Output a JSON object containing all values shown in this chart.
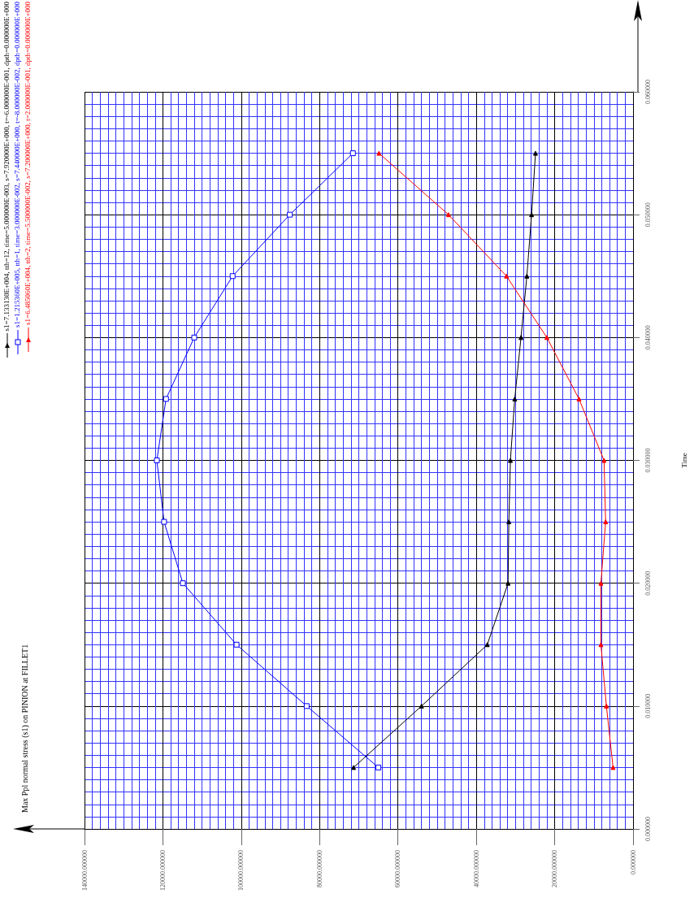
{
  "chart_data": {
    "type": "line",
    "title": "Max Ppl normal stress (s1) on PINION at FILLET1",
    "ylabel": "Time",
    "series": [
      {
        "name": "s1=7.133130E+004, tth=12, time=5.000000E-003, s=7.920000E+000, t=-6.000000E-001, dpth=0.000000E+000",
        "color": "#000000",
        "marker": "triangle",
        "x": [
          71331,
          54000,
          37200,
          31900,
          31700,
          31300,
          30200,
          28600,
          27100,
          25900,
          24900
        ],
        "values": [
          0.005,
          0.01,
          0.015,
          0.02,
          0.025,
          0.03,
          0.035,
          0.04,
          0.045,
          0.05,
          0.055
        ]
      },
      {
        "name": "s1=1.215360E+005, tth=1, time=3.000000E-002, s=7.440000E+000, t=-8.000000E-002, dpth=0.000000E+000",
        "color": "#0000ff",
        "marker": "square",
        "x": [
          65000,
          83300,
          101200,
          114900,
          119700,
          121536,
          119200,
          112000,
          102200,
          87600,
          71500
        ],
        "values": [
          0.005,
          0.01,
          0.015,
          0.02,
          0.025,
          0.03,
          0.035,
          0.04,
          0.045,
          0.05,
          0.055
        ]
      },
      {
        "name": "s1=6.485060E+004, tth=2, time=5.500000E-002, s=7.200000E+000, t=2.000000E-001, dpth=0.000000E+000",
        "color": "#ff0000",
        "marker": "triangle",
        "x": [
          5100,
          6800,
          8200,
          8200,
          7000,
          7400,
          13800,
          22000,
          32300,
          47100,
          64851
        ],
        "values": [
          0.005,
          0.01,
          0.015,
          0.02,
          0.025,
          0.03,
          0.035,
          0.04,
          0.045,
          0.05,
          0.055
        ]
      }
    ],
    "xlim": [
      140000,
      0
    ],
    "xticks": [
      {
        "value": 0,
        "label": "0.000000"
      },
      {
        "value": 2000,
        "label": null
      },
      {
        "value": 4000,
        "label": null
      },
      {
        "value": 6000,
        "label": null
      },
      {
        "value": 8000,
        "label": null
      },
      {
        "value": 10000,
        "label": null
      },
      {
        "value": 12000,
        "label": null
      },
      {
        "value": 14000,
        "label": null
      },
      {
        "value": 16000,
        "label": null
      },
      {
        "value": 18000,
        "label": null
      },
      {
        "value": 20000,
        "label": "20000.000000"
      },
      {
        "value": 22000,
        "label": null
      },
      {
        "value": 24000,
        "label": null
      },
      {
        "value": 26000,
        "label": null
      },
      {
        "value": 28000,
        "label": null
      },
      {
        "value": 30000,
        "label": null
      },
      {
        "value": 32000,
        "label": null
      },
      {
        "value": 34000,
        "label": null
      },
      {
        "value": 36000,
        "label": null
      },
      {
        "value": 38000,
        "label": null
      },
      {
        "value": 40000,
        "label": "40000.000000"
      },
      {
        "value": 42000,
        "label": null
      },
      {
        "value": 44000,
        "label": null
      },
      {
        "value": 46000,
        "label": null
      },
      {
        "value": 48000,
        "label": null
      },
      {
        "value": 50000,
        "label": null
      },
      {
        "value": 52000,
        "label": null
      },
      {
        "value": 54000,
        "label": null
      },
      {
        "value": 56000,
        "label": null
      },
      {
        "value": 58000,
        "label": null
      },
      {
        "value": 60000,
        "label": "60000.000000"
      },
      {
        "value": 62000,
        "label": null
      },
      {
        "value": 64000,
        "label": null
      },
      {
        "value": 66000,
        "label": null
      },
      {
        "value": 68000,
        "label": null
      },
      {
        "value": 70000,
        "label": null
      },
      {
        "value": 72000,
        "label": null
      },
      {
        "value": 74000,
        "label": null
      },
      {
        "value": 76000,
        "label": null
      },
      {
        "value": 78000,
        "label": null
      },
      {
        "value": 80000,
        "label": "80000.000000"
      },
      {
        "value": 82000,
        "label": null
      },
      {
        "value": 84000,
        "label": null
      },
      {
        "value": 86000,
        "label": null
      },
      {
        "value": 88000,
        "label": null
      },
      {
        "value": 90000,
        "label": null
      },
      {
        "value": 92000,
        "label": null
      },
      {
        "value": 94000,
        "label": null
      },
      {
        "value": 96000,
        "label": null
      },
      {
        "value": 98000,
        "label": null
      },
      {
        "value": 100000,
        "label": "100000.000000"
      },
      {
        "value": 102000,
        "label": null
      },
      {
        "value": 104000,
        "label": null
      },
      {
        "value": 106000,
        "label": null
      },
      {
        "value": 108000,
        "label": null
      },
      {
        "value": 110000,
        "label": null
      },
      {
        "value": 112000,
        "label": null
      },
      {
        "value": 114000,
        "label": null
      },
      {
        "value": 116000,
        "label": null
      },
      {
        "value": 118000,
        "label": null
      },
      {
        "value": 120000,
        "label": "120000.000000"
      },
      {
        "value": 122000,
        "label": null
      },
      {
        "value": 124000,
        "label": null
      },
      {
        "value": 126000,
        "label": null
      },
      {
        "value": 128000,
        "label": null
      },
      {
        "value": 130000,
        "label": null
      },
      {
        "value": 132000,
        "label": null
      },
      {
        "value": 134000,
        "label": null
      },
      {
        "value": 136000,
        "label": null
      },
      {
        "value": 138000,
        "label": null
      },
      {
        "value": 140000,
        "label": "140000.000000"
      }
    ],
    "ylim": [
      0,
      0.06
    ],
    "yticks": [
      {
        "value": 0,
        "label": "0.000000"
      },
      {
        "value": 0.001,
        "label": null
      },
      {
        "value": 0.002,
        "label": null
      },
      {
        "value": 0.003,
        "label": null
      },
      {
        "value": 0.004,
        "label": null
      },
      {
        "value": 0.005,
        "label": null
      },
      {
        "value": 0.006,
        "label": null
      },
      {
        "value": 0.007,
        "label": null
      },
      {
        "value": 0.008,
        "label": null
      },
      {
        "value": 0.009,
        "label": null
      },
      {
        "value": 0.01,
        "label": "0.010000"
      },
      {
        "value": 0.011,
        "label": null
      },
      {
        "value": 0.012,
        "label": null
      },
      {
        "value": 0.013,
        "label": null
      },
      {
        "value": 0.014,
        "label": null
      },
      {
        "value": 0.015,
        "label": null
      },
      {
        "value": 0.016,
        "label": null
      },
      {
        "value": 0.017,
        "label": null
      },
      {
        "value": 0.018,
        "label": null
      },
      {
        "value": 0.019,
        "label": null
      },
      {
        "value": 0.02,
        "label": "0.020000"
      },
      {
        "value": 0.021,
        "label": null
      },
      {
        "value": 0.022,
        "label": null
      },
      {
        "value": 0.023,
        "label": null
      },
      {
        "value": 0.024,
        "label": null
      },
      {
        "value": 0.025,
        "label": null
      },
      {
        "value": 0.026,
        "label": null
      },
      {
        "value": 0.027,
        "label": null
      },
      {
        "value": 0.028,
        "label": null
      },
      {
        "value": 0.029,
        "label": null
      },
      {
        "value": 0.03,
        "label": "0.030000"
      },
      {
        "value": 0.031,
        "label": null
      },
      {
        "value": 0.032,
        "label": null
      },
      {
        "value": 0.033,
        "label": null
      },
      {
        "value": 0.034,
        "label": null
      },
      {
        "value": 0.035,
        "label": null
      },
      {
        "value": 0.036,
        "label": null
      },
      {
        "value": 0.037,
        "label": null
      },
      {
        "value": 0.038,
        "label": null
      },
      {
        "value": 0.039,
        "label": null
      },
      {
        "value": 0.04,
        "label": "0.040000"
      },
      {
        "value": 0.041,
        "label": null
      },
      {
        "value": 0.042,
        "label": null
      },
      {
        "value": 0.043,
        "label": null
      },
      {
        "value": 0.044,
        "label": null
      },
      {
        "value": 0.045,
        "label": null
      },
      {
        "value": 0.046,
        "label": null
      },
      {
        "value": 0.047,
        "label": null
      },
      {
        "value": 0.048,
        "label": null
      },
      {
        "value": 0.049,
        "label": null
      },
      {
        "value": 0.05,
        "label": "0.050000"
      },
      {
        "value": 0.051,
        "label": null
      },
      {
        "value": 0.052,
        "label": null
      },
      {
        "value": 0.053,
        "label": null
      },
      {
        "value": 0.054,
        "label": null
      },
      {
        "value": 0.055,
        "label": null
      },
      {
        "value": 0.056,
        "label": null
      },
      {
        "value": 0.057,
        "label": null
      },
      {
        "value": 0.058,
        "label": null
      },
      {
        "value": 0.059,
        "label": null
      },
      {
        "value": 0.06,
        "label": "0.060000"
      }
    ],
    "grid": true,
    "legend": "top left",
    "line_style": "solid"
  }
}
